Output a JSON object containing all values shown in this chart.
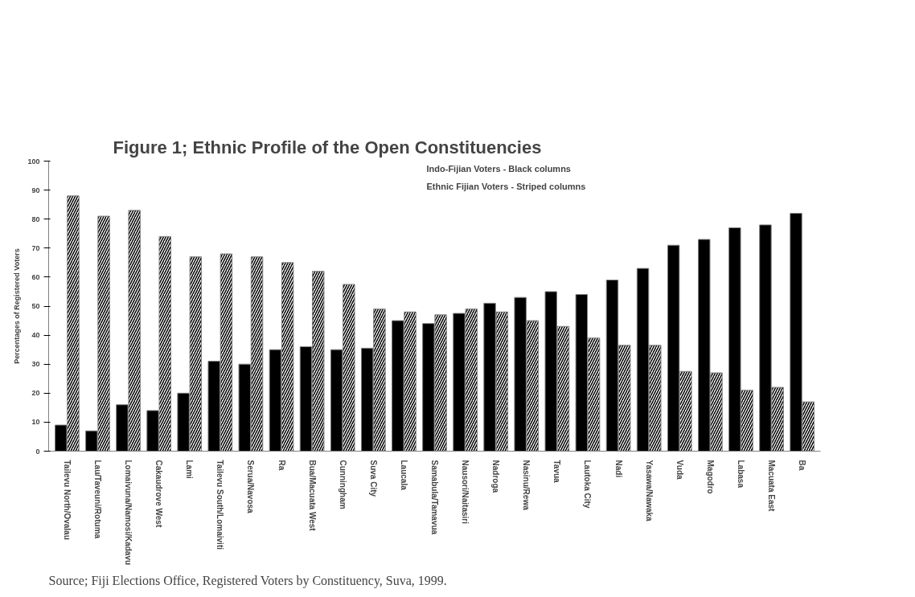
{
  "chart_data": {
    "type": "bar",
    "title": "Figure 1; Ethnic Profile of the Open Constituencies",
    "ylabel": "Percentages of Registered Voters",
    "categories": [
      "Tailevu North/Ovalau",
      "Lau/Taveuni/Rotuma",
      "Lomaivuna/Namosi/Kadavu",
      "Cakaudrove West",
      "Lami",
      "Tailevu South/Lomaiviti",
      "Serua/Navosa",
      "Ra",
      "Bua/Macuata West",
      "Cunningham",
      "Suva City",
      "Laucala",
      "Samabula/Tamavua",
      "Nausori/Naitasiri",
      "Nadroga",
      "Nasinu/Rewa",
      "Tavua",
      "Lautoka City",
      "Nadi",
      "Yasawa/Nawaka",
      "Vuda",
      "Magodro",
      "Labasa",
      "Macuata East",
      "Ba"
    ],
    "series": [
      {
        "color": "#000000",
        "values": [
          9,
          7,
          16,
          14,
          20,
          31,
          30,
          35,
          36,
          35,
          35.5,
          45,
          44,
          47.5,
          51,
          53,
          55,
          54,
          59,
          63,
          71,
          73,
          77,
          78,
          82
        ]
      },
      {
        "color": "#ffffff",
        "values": [
          88,
          81,
          83,
          74,
          67,
          68,
          67,
          65,
          62,
          57.5,
          49,
          48,
          47,
          49,
          48,
          45,
          43,
          39,
          36.5,
          36.5,
          27.5,
          27,
          21,
          22,
          17
        ]
      }
    ],
    "ylim": [
      0,
      100
    ],
    "yticks": [
      0,
      10,
      20,
      30,
      40,
      50,
      60,
      70,
      80,
      90,
      100
    ],
    "grid": false,
    "annotations": [
      "Indo-Fijian Voters - Black columns",
      "Ethnic Fijian Voters - Striped columns",
      "Source; Fiji Elections Office, Registered Voters by Constituency, Suva, 1999."
    ]
  }
}
